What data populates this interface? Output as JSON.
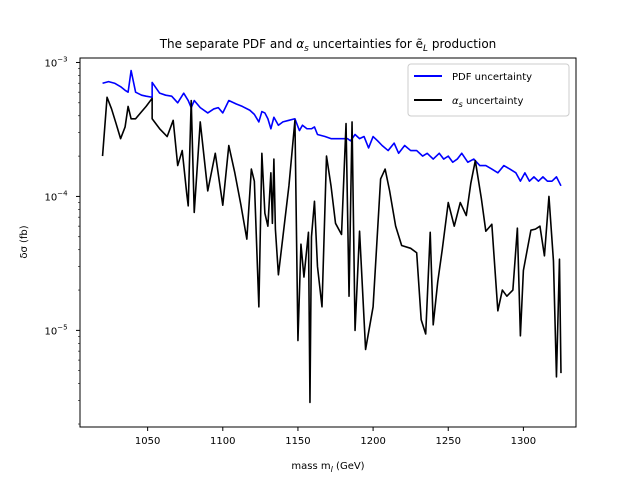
{
  "chart_data": {
    "type": "line",
    "title": "The separate PDF and αs uncertainties for ẽL production",
    "title_parts": {
      "before": "The separate PDF and ",
      "alpha": "α",
      "alpha_sub": "s",
      "middle": " uncertainties for ",
      "e_tilde": "ẽ",
      "e_sub": "L",
      "after": " production"
    },
    "xlabel": "mass m",
    "xlabel_sub": "l",
    "xlabel_unit": " (GeV)",
    "ylabel": "δσ (fb)",
    "yscale": "log",
    "xlim": [
      1005,
      1335
    ],
    "ylim": [
      1.9e-06,
      0.00108
    ],
    "xticks": [
      1050,
      1100,
      1150,
      1200,
      1250,
      1300
    ],
    "xtick_labels": [
      "1050",
      "1100",
      "1150",
      "1200",
      "1250",
      "1300"
    ],
    "yticks": [
      1e-05,
      0.0001,
      0.001
    ],
    "ytick_labels": [
      {
        "base": "10",
        "exp": "−5"
      },
      {
        "base": "10",
        "exp": "−4"
      },
      {
        "base": "10",
        "exp": "−3"
      }
    ],
    "grid": false,
    "legend_position": "top-right",
    "series": [
      {
        "name": "PDF uncertainty",
        "color": "#0000ff",
        "x": [
          1020,
          1024,
          1028,
          1032,
          1035,
          1037,
          1039,
          1042,
          1046,
          1049,
          1053,
          1053,
          1058,
          1062,
          1066,
          1070,
          1074,
          1077,
          1079,
          1081,
          1085,
          1090,
          1094,
          1097,
          1100,
          1104,
          1109,
          1113,
          1118,
          1121,
          1124,
          1126,
          1128,
          1130,
          1132,
          1134,
          1137,
          1140,
          1144,
          1148,
          1151,
          1153,
          1156,
          1159,
          1161,
          1163,
          1168,
          1172,
          1176,
          1180,
          1183,
          1185,
          1188,
          1191,
          1194,
          1197,
          1200,
          1203,
          1206,
          1210,
          1214,
          1217,
          1221,
          1225,
          1229,
          1233,
          1236,
          1240,
          1244,
          1247,
          1250,
          1253,
          1256,
          1259,
          1263,
          1267,
          1271,
          1275,
          1279,
          1283,
          1287,
          1291,
          1295,
          1298,
          1301,
          1304,
          1307,
          1310,
          1313,
          1316,
          1319,
          1322,
          1325
        ],
        "y": [
          0.0007,
          0.00072,
          0.0007,
          0.00066,
          0.00062,
          0.0006,
          0.00087,
          0.0006,
          0.00057,
          0.00056,
          0.00055,
          0.00071,
          0.00059,
          0.00057,
          0.00056,
          0.0005,
          0.00059,
          0.00052,
          0.00046,
          0.00052,
          0.00046,
          0.00042,
          0.00045,
          0.00046,
          0.00042,
          0.00052,
          0.00049,
          0.00047,
          0.00044,
          0.00041,
          0.00036,
          0.00043,
          0.00042,
          0.00038,
          0.00032,
          0.00039,
          0.00034,
          0.00036,
          0.00037,
          0.00038,
          0.00031,
          0.00034,
          0.00032,
          0.00032,
          0.00033,
          0.00029,
          0.00028,
          0.00027,
          0.00027,
          0.00027,
          0.00027,
          0.00026,
          0.00029,
          0.00027,
          0.00028,
          0.00023,
          0.00028,
          0.00026,
          0.00024,
          0.00022,
          0.00025,
          0.00021,
          0.00024,
          0.00022,
          0.00022,
          0.0002,
          0.00021,
          0.00019,
          0.00021,
          0.00019,
          0.0002,
          0.00018,
          0.00019,
          0.00021,
          0.00018,
          0.00019,
          0.00017,
          0.00017,
          0.00016,
          0.00015,
          0.00017,
          0.00016,
          0.00015,
          0.00013,
          0.00015,
          0.00013,
          0.00014,
          0.00013,
          0.00014,
          0.00013,
          0.00013,
          0.00014,
          0.00012
        ]
      },
      {
        "name": "αs uncertainty",
        "color": "#000000",
        "x": [
          1020,
          1023,
          1026,
          1029,
          1032,
          1035,
          1037,
          1039,
          1042,
          1046,
          1049,
          1053,
          1053,
          1058,
          1063,
          1067,
          1070,
          1073,
          1076,
          1077,
          1079,
          1081,
          1085,
          1090,
          1095,
          1100,
          1104,
          1108,
          1112,
          1116,
          1119,
          1121,
          1124,
          1126,
          1128,
          1130,
          1132,
          1133,
          1134,
          1135,
          1137,
          1140,
          1144,
          1148,
          1150,
          1152,
          1154,
          1157,
          1158,
          1159,
          1161,
          1163,
          1166,
          1169,
          1172,
          1175,
          1179,
          1182,
          1184,
          1186,
          1188,
          1191,
          1195,
          1200,
          1205,
          1208,
          1211,
          1215,
          1219,
          1225,
          1229,
          1232,
          1235,
          1238,
          1240,
          1243,
          1246,
          1250,
          1254,
          1258,
          1262,
          1265,
          1268,
          1272,
          1275,
          1279,
          1283,
          1286,
          1289,
          1293,
          1296,
          1298,
          1300,
          1302,
          1305,
          1308,
          1311,
          1314,
          1317,
          1320,
          1322,
          1324,
          1325
        ],
        "y": [
          0.0002,
          0.00055,
          0.00045,
          0.00035,
          0.00027,
          0.00033,
          0.00047,
          0.00038,
          0.00038,
          0.00043,
          0.00047,
          0.00054,
          0.00038,
          0.00032,
          0.00028,
          0.00037,
          0.00017,
          0.00022,
          0.000105,
          8.5e-05,
          0.00052,
          7.6e-05,
          0.00036,
          0.00011,
          0.00021,
          8.6e-05,
          0.00024,
          0.00015,
          8.7e-05,
          4.8e-05,
          0.00016,
          0.00013,
          1.5e-05,
          0.00021,
          7.5e-05,
          6e-05,
          0.00015,
          6.3e-05,
          0.00019,
          5.7e-05,
          2.6e-05,
          5e-05,
          0.00012,
          0.00037,
          8.4e-06,
          4.4e-05,
          2.5e-05,
          5.4e-05,
          2.9e-06,
          5e-05,
          9.2e-05,
          3e-05,
          1.5e-05,
          0.0002,
          0.00012,
          6.3e-05,
          5.2e-05,
          0.00035,
          1.8e-05,
          0.00036,
          1e-05,
          5.5e-05,
          7.2e-06,
          1.5e-05,
          0.000135,
          0.00016,
          0.00011,
          6e-05,
          4.3e-05,
          4.1e-05,
          3.8e-05,
          1.2e-05,
          9.4e-06,
          5.4e-05,
          1.1e-05,
          2.3e-05,
          4e-05,
          9e-05,
          6e-05,
          9e-05,
          7.2e-05,
          0.000125,
          0.000185,
          9.7e-05,
          5.5e-05,
          6.2e-05,
          1.4e-05,
          2e-05,
          1.8e-05,
          2e-05,
          5.8e-05,
          9.1e-06,
          2.8e-05,
          3.7e-05,
          5.6e-05,
          5.7e-05,
          6e-05,
          3.6e-05,
          0.0001,
          3.3e-05,
          4.5e-06,
          3.4e-05,
          4.8e-06
        ]
      }
    ]
  }
}
